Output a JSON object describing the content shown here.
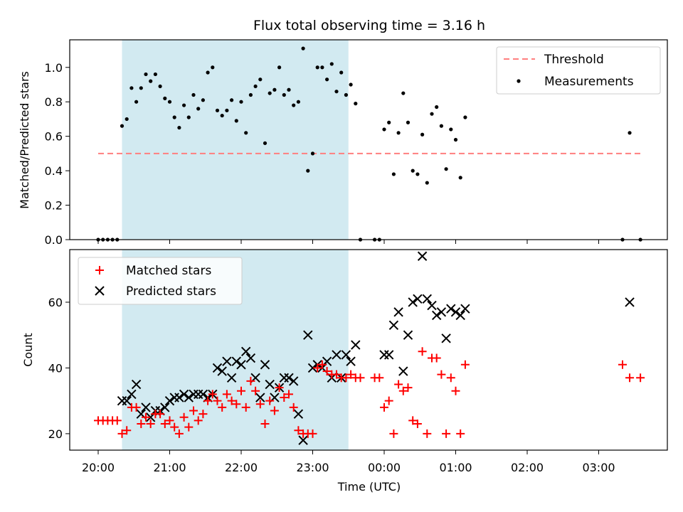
{
  "chart_data": [
    {
      "type": "scatter",
      "title": "Flux total observing time = 3.16 h",
      "xlabel": "",
      "ylabel": "Matched/Predicted stars",
      "ylim": [
        0.0,
        1.16
      ],
      "yticks": [
        0.0,
        0.2,
        0.4,
        0.6,
        0.8,
        1.0
      ],
      "yticklabels": [
        "0.0",
        "0.2",
        "0.4",
        "0.6",
        "0.8",
        "1.0"
      ],
      "shaded_region": {
        "from": "20:20",
        "to": "23:30",
        "color": "#add8e6"
      },
      "legend_position": "top-right",
      "threshold": {
        "name": "Threshold",
        "y": 0.5,
        "x_from": "20:00",
        "x_to": "03:35",
        "color": "#ff7f7f"
      },
      "series": [
        {
          "name": "Measurements",
          "marker": "dot",
          "color": "#000000",
          "points": [
            [
              "20:00",
              0.0
            ],
            [
              "20:04",
              0.0
            ],
            [
              "20:08",
              0.0
            ],
            [
              "20:12",
              0.0
            ],
            [
              "20:16",
              0.0
            ],
            [
              "20:20",
              0.66
            ],
            [
              "20:24",
              0.7
            ],
            [
              "20:28",
              0.88
            ],
            [
              "20:32",
              0.8
            ],
            [
              "20:36",
              0.88
            ],
            [
              "20:40",
              0.96
            ],
            [
              "20:44",
              0.92
            ],
            [
              "20:48",
              0.96
            ],
            [
              "20:52",
              0.89
            ],
            [
              "20:56",
              0.82
            ],
            [
              "21:00",
              0.8
            ],
            [
              "21:04",
              0.71
            ],
            [
              "21:08",
              0.65
            ],
            [
              "21:12",
              0.78
            ],
            [
              "21:16",
              0.71
            ],
            [
              "21:20",
              0.84
            ],
            [
              "21:24",
              0.76
            ],
            [
              "21:28",
              0.81
            ],
            [
              "21:32",
              0.97
            ],
            [
              "21:36",
              1.0
            ],
            [
              "21:40",
              0.75
            ],
            [
              "21:44",
              0.72
            ],
            [
              "21:48",
              0.75
            ],
            [
              "21:52",
              0.81
            ],
            [
              "21:56",
              0.69
            ],
            [
              "22:00",
              0.8
            ],
            [
              "22:04",
              0.62
            ],
            [
              "22:08",
              0.84
            ],
            [
              "22:12",
              0.89
            ],
            [
              "22:16",
              0.93
            ],
            [
              "22:20",
              0.56
            ],
            [
              "22:24",
              0.85
            ],
            [
              "22:28",
              0.87
            ],
            [
              "22:32",
              1.0
            ],
            [
              "22:36",
              0.84
            ],
            [
              "22:40",
              0.87
            ],
            [
              "22:44",
              0.78
            ],
            [
              "22:48",
              0.8
            ],
            [
              "22:52",
              1.11
            ],
            [
              "22:56",
              0.4
            ],
            [
              "23:00",
              0.5
            ],
            [
              "23:04",
              1.0
            ],
            [
              "23:08",
              1.0
            ],
            [
              "23:12",
              0.93
            ],
            [
              "23:16",
              1.02
            ],
            [
              "23:20",
              0.86
            ],
            [
              "23:24",
              0.97
            ],
            [
              "23:28",
              0.84
            ],
            [
              "23:32",
              0.9
            ],
            [
              "23:36",
              0.79
            ],
            [
              "23:40",
              0.0
            ],
            [
              "23:52",
              0.0
            ],
            [
              "23:56",
              0.0
            ],
            [
              "00:00",
              0.64
            ],
            [
              "00:04",
              0.68
            ],
            [
              "00:08",
              0.38
            ],
            [
              "00:12",
              0.62
            ],
            [
              "00:16",
              0.85
            ],
            [
              "00:20",
              0.68
            ],
            [
              "00:24",
              0.4
            ],
            [
              "00:28",
              0.38
            ],
            [
              "00:32",
              0.61
            ],
            [
              "00:36",
              0.33
            ],
            [
              "00:40",
              0.73
            ],
            [
              "00:44",
              0.77
            ],
            [
              "00:48",
              0.66
            ],
            [
              "00:52",
              0.41
            ],
            [
              "00:56",
              0.64
            ],
            [
              "01:00",
              0.58
            ],
            [
              "01:04",
              0.36
            ],
            [
              "01:08",
              0.71
            ],
            [
              "03:20",
              0.0
            ],
            [
              "03:26",
              0.62
            ],
            [
              "03:35",
              0.0
            ]
          ]
        }
      ]
    },
    {
      "type": "scatter",
      "xlabel": "Time (UTC)",
      "ylabel": "Count",
      "ylim": [
        15,
        76
      ],
      "yticks": [
        20,
        40,
        60
      ],
      "yticklabels": [
        "20",
        "40",
        "60"
      ],
      "xticks": [
        "20:00",
        "21:00",
        "22:00",
        "23:00",
        "00:00",
        "01:00",
        "02:00",
        "03:00"
      ],
      "shaded_region": {
        "from": "20:20",
        "to": "23:30",
        "color": "#add8e6"
      },
      "legend_position": "top-left",
      "series": [
        {
          "name": "Matched stars",
          "marker": "plus",
          "color": "#ff0000",
          "points": [
            [
              "20:00",
              24
            ],
            [
              "20:04",
              24
            ],
            [
              "20:08",
              24
            ],
            [
              "20:12",
              24
            ],
            [
              "20:16",
              24
            ],
            [
              "20:20",
              20
            ],
            [
              "20:24",
              21
            ],
            [
              "20:28",
              28
            ],
            [
              "20:32",
              28
            ],
            [
              "20:36",
              23
            ],
            [
              "20:40",
              25
            ],
            [
              "20:44",
              23
            ],
            [
              "20:48",
              26
            ],
            [
              "20:52",
              26
            ],
            [
              "20:56",
              23
            ],
            [
              "21:00",
              24
            ],
            [
              "21:04",
              22
            ],
            [
              "21:08",
              20
            ],
            [
              "21:12",
              25
            ],
            [
              "21:16",
              22
            ],
            [
              "21:20",
              27
            ],
            [
              "21:24",
              24
            ],
            [
              "21:28",
              26
            ],
            [
              "21:32",
              30
            ],
            [
              "21:36",
              32
            ],
            [
              "21:40",
              30
            ],
            [
              "21:44",
              28
            ],
            [
              "21:48",
              32
            ],
            [
              "21:52",
              30
            ],
            [
              "21:56",
              29
            ],
            [
              "22:00",
              33
            ],
            [
              "22:04",
              28
            ],
            [
              "22:08",
              36
            ],
            [
              "22:12",
              33
            ],
            [
              "22:16",
              29
            ],
            [
              "22:20",
              23
            ],
            [
              "22:24",
              30
            ],
            [
              "22:28",
              27
            ],
            [
              "22:32",
              34
            ],
            [
              "22:36",
              31
            ],
            [
              "22:40",
              32
            ],
            [
              "22:44",
              28
            ],
            [
              "22:48",
              21
            ],
            [
              "22:52",
              20
            ],
            [
              "22:56",
              20
            ],
            [
              "23:00",
              20
            ],
            [
              "23:04",
              40
            ],
            [
              "23:08",
              41
            ],
            [
              "23:12",
              39
            ],
            [
              "23:16",
              38
            ],
            [
              "23:20",
              38
            ],
            [
              "23:24",
              37
            ],
            [
              "23:28",
              37
            ],
            [
              "23:32",
              38
            ],
            [
              "23:36",
              37
            ],
            [
              "23:40",
              37
            ],
            [
              "23:52",
              37
            ],
            [
              "23:56",
              37
            ],
            [
              "00:00",
              28
            ],
            [
              "00:04",
              30
            ],
            [
              "00:08",
              20
            ],
            [
              "00:12",
              35
            ],
            [
              "00:16",
              33
            ],
            [
              "00:20",
              34
            ],
            [
              "00:24",
              24
            ],
            [
              "00:28",
              23
            ],
            [
              "00:32",
              45
            ],
            [
              "00:36",
              20
            ],
            [
              "00:40",
              43
            ],
            [
              "00:44",
              43
            ],
            [
              "00:48",
              38
            ],
            [
              "00:52",
              20
            ],
            [
              "00:56",
              37
            ],
            [
              "01:00",
              33
            ],
            [
              "01:04",
              20
            ],
            [
              "01:08",
              41
            ],
            [
              "03:20",
              41
            ],
            [
              "03:26",
              37
            ],
            [
              "03:35",
              37
            ]
          ]
        },
        {
          "name": "Predicted stars",
          "marker": "x",
          "color": "#000000",
          "points": [
            [
              "20:20",
              30
            ],
            [
              "20:24",
              30
            ],
            [
              "20:28",
              32
            ],
            [
              "20:32",
              35
            ],
            [
              "20:36",
              26
            ],
            [
              "20:40",
              28
            ],
            [
              "20:44",
              25
            ],
            [
              "20:48",
              27
            ],
            [
              "20:52",
              27
            ],
            [
              "20:56",
              28
            ],
            [
              "21:00",
              30
            ],
            [
              "21:04",
              31
            ],
            [
              "21:08",
              31
            ],
            [
              "21:12",
              32
            ],
            [
              "21:16",
              31
            ],
            [
              "21:20",
              32
            ],
            [
              "21:24",
              32
            ],
            [
              "21:28",
              32
            ],
            [
              "21:32",
              31
            ],
            [
              "21:36",
              32
            ],
            [
              "21:40",
              40
            ],
            [
              "21:44",
              39
            ],
            [
              "21:48",
              42
            ],
            [
              "21:52",
              37
            ],
            [
              "21:56",
              42
            ],
            [
              "22:00",
              41
            ],
            [
              "22:04",
              45
            ],
            [
              "22:08",
              43
            ],
            [
              "22:12",
              37
            ],
            [
              "22:16",
              31
            ],
            [
              "22:20",
              41
            ],
            [
              "22:24",
              35
            ],
            [
              "22:28",
              31
            ],
            [
              "22:32",
              34
            ],
            [
              "22:36",
              37
            ],
            [
              "22:40",
              37
            ],
            [
              "22:44",
              36
            ],
            [
              "22:48",
              26
            ],
            [
              "22:52",
              18
            ],
            [
              "22:56",
              50
            ],
            [
              "23:00",
              40
            ],
            [
              "23:04",
              41
            ],
            [
              "23:08",
              40
            ],
            [
              "23:12",
              42
            ],
            [
              "23:16",
              37
            ],
            [
              "23:20",
              44
            ],
            [
              "23:24",
              37
            ],
            [
              "23:28",
              44
            ],
            [
              "23:32",
              42
            ],
            [
              "23:36",
              47
            ],
            [
              "00:00",
              44
            ],
            [
              "00:04",
              44
            ],
            [
              "00:08",
              53
            ],
            [
              "00:12",
              57
            ],
            [
              "00:16",
              39
            ],
            [
              "00:20",
              50
            ],
            [
              "00:24",
              60
            ],
            [
              "00:28",
              61
            ],
            [
              "00:32",
              74
            ],
            [
              "00:36",
              61
            ],
            [
              "00:40",
              59
            ],
            [
              "00:44",
              56
            ],
            [
              "00:48",
              57
            ],
            [
              "00:52",
              49
            ],
            [
              "00:56",
              58
            ],
            [
              "01:00",
              57
            ],
            [
              "01:04",
              56
            ],
            [
              "01:08",
              58
            ],
            [
              "03:26",
              60
            ]
          ]
        }
      ]
    }
  ]
}
